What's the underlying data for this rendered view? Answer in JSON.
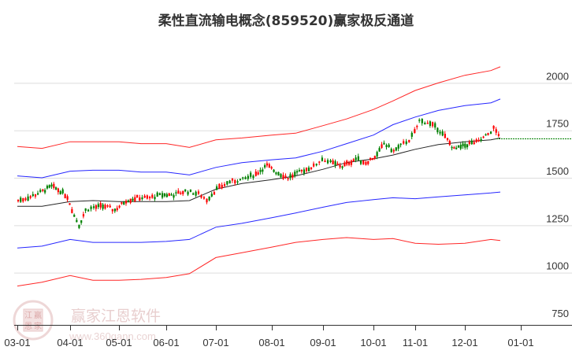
{
  "title": "柔性直流输电概念(859520)赢家极反通道",
  "watermark": {
    "brand": "赢家江恩软件",
    "url": "www.360gann.com",
    "logo_chars": [
      "江",
      "赢",
      "恩",
      "家"
    ]
  },
  "colors": {
    "outer_band": "#ff0000",
    "inner_band": "#0000ff",
    "center_line": "#000000",
    "candle_up": "#ff0000",
    "candle_down": "#008000",
    "last_price_line": "#008000",
    "grid": "#dddddd"
  },
  "chart_data": {
    "type": "candlestick",
    "title": "柔性直流输电概念(859520)赢家极反通道",
    "xlabel": "",
    "ylabel": "",
    "ylim": [
      750,
      2100
    ],
    "y_ticks": [
      750,
      1000,
      1250,
      1500,
      1750,
      2000
    ],
    "x_ticks": [
      "03-01",
      "04-01",
      "05-01",
      "06-01",
      "07-01",
      "08-01",
      "09-01",
      "10-01",
      "11-01",
      "12-01",
      "01-01"
    ],
    "grid": "horizontal",
    "legend": "none",
    "last_price": 1705,
    "series": [
      {
        "name": "upper_outer",
        "color": "#ff0000",
        "x": [
          "03-01",
          "03-15",
          "04-01",
          "04-15",
          "05-01",
          "05-15",
          "06-01",
          "06-15",
          "07-01",
          "07-15",
          "08-01",
          "08-15",
          "09-01",
          "09-15",
          "10-01",
          "10-15",
          "11-01",
          "11-15",
          "12-01",
          "12-15",
          "12-20"
        ],
        "values": [
          1665,
          1655,
          1690,
          1690,
          1690,
          1680,
          1680,
          1660,
          1700,
          1710,
          1725,
          1735,
          1775,
          1810,
          1860,
          1905,
          1960,
          2000,
          2040,
          2065,
          2085
        ]
      },
      {
        "name": "upper_inner",
        "color": "#0000ff",
        "x": [
          "03-01",
          "03-15",
          "04-01",
          "04-15",
          "05-01",
          "05-15",
          "06-01",
          "06-15",
          "07-01",
          "07-15",
          "08-01",
          "08-15",
          "09-01",
          "09-15",
          "10-01",
          "10-15",
          "11-01",
          "11-15",
          "12-01",
          "12-15",
          "12-20"
        ],
        "values": [
          1510,
          1500,
          1535,
          1540,
          1540,
          1530,
          1530,
          1515,
          1555,
          1580,
          1595,
          1605,
          1640,
          1680,
          1725,
          1780,
          1820,
          1855,
          1880,
          1895,
          1915
        ]
      },
      {
        "name": "center",
        "color": "#000000",
        "x": [
          "03-01",
          "03-15",
          "04-01",
          "04-15",
          "05-01",
          "05-15",
          "06-01",
          "06-15",
          "07-01",
          "07-15",
          "08-01",
          "08-15",
          "09-01",
          "09-15",
          "10-01",
          "10-15",
          "11-01",
          "11-15",
          "12-01",
          "12-15",
          "12-20"
        ],
        "values": [
          1350,
          1350,
          1375,
          1380,
          1375,
          1375,
          1375,
          1380,
          1440,
          1470,
          1490,
          1510,
          1545,
          1580,
          1600,
          1620,
          1650,
          1675,
          1690,
          1700,
          1710
        ]
      },
      {
        "name": "lower_inner",
        "color": "#0000ff",
        "x": [
          "03-01",
          "03-15",
          "04-01",
          "04-15",
          "05-01",
          "05-15",
          "06-01",
          "06-15",
          "07-01",
          "07-15",
          "08-01",
          "08-15",
          "09-01",
          "09-15",
          "10-01",
          "10-15",
          "11-01",
          "11-15",
          "12-01",
          "12-15",
          "12-20"
        ],
        "values": [
          1130,
          1140,
          1175,
          1160,
          1160,
          1160,
          1165,
          1175,
          1240,
          1260,
          1290,
          1315,
          1345,
          1370,
          1385,
          1395,
          1390,
          1400,
          1410,
          1420,
          1425
        ]
      },
      {
        "name": "lower_outer",
        "color": "#ff0000",
        "x": [
          "03-01",
          "03-15",
          "04-01",
          "04-15",
          "05-01",
          "05-15",
          "06-01",
          "06-15",
          "07-01",
          "07-15",
          "08-01",
          "08-15",
          "09-01",
          "09-15",
          "10-01",
          "10-15",
          "11-01",
          "11-15",
          "12-01",
          "12-15",
          "12-20"
        ],
        "values": [
          930,
          950,
          985,
          960,
          960,
          965,
          975,
          995,
          1080,
          1105,
          1135,
          1160,
          1175,
          1185,
          1175,
          1180,
          1155,
          1150,
          1155,
          1175,
          1170
        ]
      }
    ],
    "candles_summary": "Daily candlesticks ~1380 at 03-01, peak ~1460 mid-March, gap down to ~1220 low early April, recovery to ~1420 May-June, rise through July-Aug ~1520-1600, ~1640 early Oct, ~1720 late Oct, peak ~1820 early Nov, pullback ~1640 late Nov, last ~1705-1740 mid Dec"
  }
}
